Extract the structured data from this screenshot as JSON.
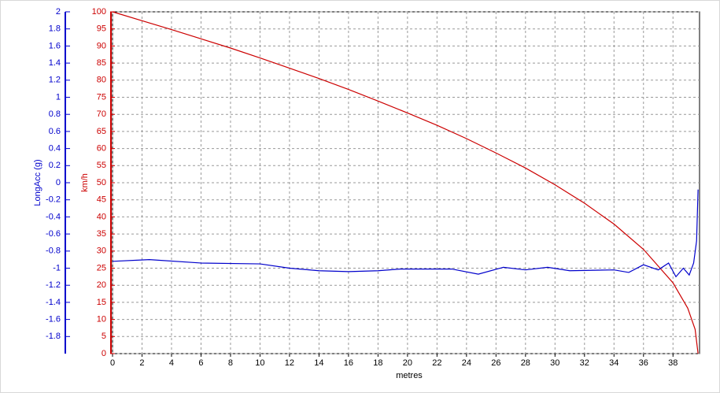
{
  "chart_data": {
    "type": "line",
    "xlabel": "metres",
    "ylabel": "LongAcc (g)",
    "y2label": "km/h",
    "xlim": [
      0,
      39.8
    ],
    "xticks": [
      0,
      2,
      4,
      6,
      8,
      10,
      12,
      14,
      16,
      18,
      20,
      22,
      24,
      26,
      28,
      30,
      32,
      34,
      36,
      38
    ],
    "ylim": [
      -2,
      2
    ],
    "yticks": [
      2,
      1.8,
      1.6,
      1.4,
      1.2,
      1,
      0.8,
      0.6,
      0.4,
      0.2,
      0,
      -0.2,
      -0.4,
      -0.6,
      -0.8,
      -1,
      -1.2,
      -1.4,
      -1.6,
      -1.8
    ],
    "y2lim": [
      0,
      100
    ],
    "y2ticks": [
      0,
      5,
      10,
      15,
      20,
      25,
      30,
      35,
      40,
      45,
      50,
      55,
      60,
      65,
      70,
      75,
      80,
      85,
      90,
      95,
      100
    ],
    "grid": true,
    "ycolor": "#0000cc",
    "y2color": "#cc0000",
    "series": [
      {
        "axis": "y2",
        "color": "#cc0000",
        "x": [
          0,
          2,
          4,
          6,
          8,
          10,
          12,
          14,
          16,
          18,
          20,
          22,
          24,
          26,
          28,
          30,
          32,
          34,
          36,
          38,
          39,
          39.5,
          39.7
        ],
        "values": [
          100,
          97.4,
          94.8,
          92.1,
          89.4,
          86.5,
          83.5,
          80.5,
          77.3,
          73.9,
          70.4,
          66.8,
          62.9,
          58.7,
          54.3,
          49.4,
          44.0,
          37.9,
          30.5,
          20.7,
          13.3,
          7.1,
          0
        ]
      },
      {
        "axis": "y",
        "color": "#0000cc",
        "x": [
          0,
          2.5,
          6,
          10,
          12,
          14,
          16,
          18,
          19.5,
          23,
          24.8,
          26.5,
          28,
          29.5,
          31,
          34,
          35,
          36,
          37,
          37.7,
          38.2,
          38.7,
          39.1,
          39.4,
          39.6,
          39.7
        ],
        "values": [
          -0.92,
          -0.9,
          -0.94,
          -0.95,
          -1.0,
          -1.03,
          -1.04,
          -1.03,
          -1.01,
          -1.01,
          -1.07,
          -0.99,
          -1.02,
          -0.99,
          -1.03,
          -1.02,
          -1.05,
          -0.96,
          -1.02,
          -0.94,
          -1.1,
          -1.0,
          -1.08,
          -0.94,
          -0.68,
          -0.08
        ]
      }
    ]
  }
}
